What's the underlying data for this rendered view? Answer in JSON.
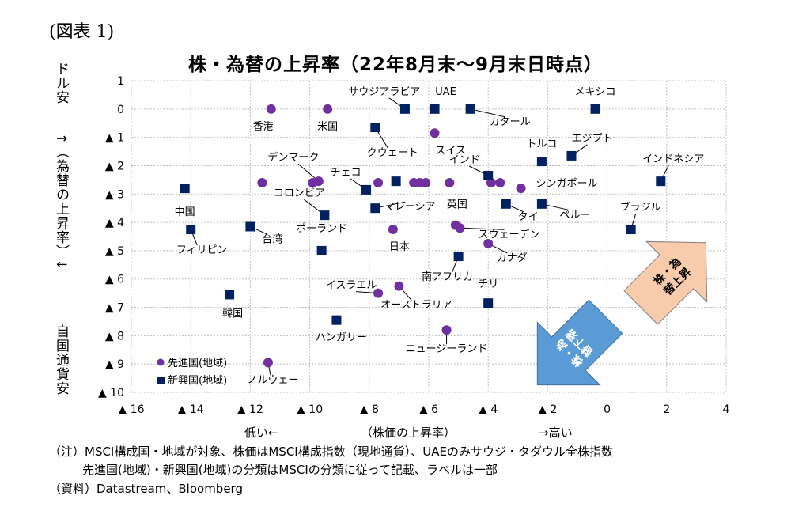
{
  "figure_number": "(図表 1)",
  "chart_data": {
    "type": "scatter",
    "title": "株・為替の上昇率（22年8月末～9月末日時点）",
    "xlabel": "（株価の上昇率）",
    "xlabel_left": "低い←",
    "xlabel_right": "→高い",
    "ylabel_top": "ドル安",
    "ylabel_middle": "↑（為替の上昇率）↓",
    "ylabel_bottom": "自国通貨安",
    "xlim": [
      -16,
      4
    ],
    "ylim": [
      -10,
      1
    ],
    "x_ticks": [
      {
        "value": -16,
        "label": "▲ 16"
      },
      {
        "value": -14,
        "label": "▲ 14"
      },
      {
        "value": -12,
        "label": "▲ 12"
      },
      {
        "value": -10,
        "label": "▲ 10"
      },
      {
        "value": -8,
        "label": "▲ 8"
      },
      {
        "value": -6,
        "label": "▲ 6"
      },
      {
        "value": -4,
        "label": "▲ 4"
      },
      {
        "value": -2,
        "label": "▲ 2"
      },
      {
        "value": 0,
        "label": "0"
      },
      {
        "value": 2,
        "label": "2"
      },
      {
        "value": 4,
        "label": "4"
      }
    ],
    "y_ticks": [
      {
        "value": 1,
        "label": "1"
      },
      {
        "value": 0,
        "label": "0"
      },
      {
        "value": -1,
        "label": "▲ 1"
      },
      {
        "value": -2,
        "label": "▲ 2"
      },
      {
        "value": -3,
        "label": "▲ 3"
      },
      {
        "value": -4,
        "label": "▲ 4"
      },
      {
        "value": -5,
        "label": "▲ 5"
      },
      {
        "value": -6,
        "label": "▲ 6"
      },
      {
        "value": -7,
        "label": "▲ 7"
      },
      {
        "value": -8,
        "label": "▲ 8"
      },
      {
        "value": -9,
        "label": "▲ 9"
      },
      {
        "value": -10,
        "label": "▲ 10"
      }
    ],
    "grid": true,
    "legend_position": "bottom-left",
    "series": [
      {
        "name": "先進国(地域)",
        "marker": "circle",
        "color": "#7030A0",
        "points": [
          {
            "x": -11.3,
            "y": 0.0,
            "label": "香港"
          },
          {
            "x": -9.4,
            "y": 0.0,
            "label": "米国"
          },
          {
            "x": -11.6,
            "y": -2.6
          },
          {
            "x": -9.9,
            "y": -2.6
          },
          {
            "x": -9.7,
            "y": -2.55,
            "label": "デンマーク"
          },
          {
            "x": -7.7,
            "y": -2.6
          },
          {
            "x": -6.5,
            "y": -2.6
          },
          {
            "x": -6.3,
            "y": -2.6
          },
          {
            "x": -6.1,
            "y": -2.6
          },
          {
            "x": -5.3,
            "y": -2.6
          },
          {
            "x": -5.8,
            "y": -0.85,
            "label": "スイス"
          },
          {
            "x": -3.9,
            "y": -2.6
          },
          {
            "x": -3.6,
            "y": -2.6
          },
          {
            "x": -2.9,
            "y": -2.8,
            "label": "シンガポール"
          },
          {
            "x": -7.2,
            "y": -4.25,
            "label": "日本"
          },
          {
            "x": -5.1,
            "y": -4.1,
            "label": "英国"
          },
          {
            "x": -4.95,
            "y": -4.2,
            "label": "スウェーデン"
          },
          {
            "x": -4.0,
            "y": -4.75,
            "label": "カナダ"
          },
          {
            "x": -7.0,
            "y": -6.25,
            "label": "オーストラリア"
          },
          {
            "x": -7.7,
            "y": -6.5,
            "label": "イスラエル"
          },
          {
            "x": -5.4,
            "y": -7.8,
            "label": "ニュージーランド"
          },
          {
            "x": -11.4,
            "y": -8.95,
            "label": "ノルウェー"
          }
        ]
      },
      {
        "name": "新興国(地域)",
        "marker": "square",
        "color": "#002060",
        "points": [
          {
            "x": -6.8,
            "y": 0.0,
            "label": "サウジアラビア"
          },
          {
            "x": -5.8,
            "y": 0.0,
            "label": "UAE"
          },
          {
            "x": -4.6,
            "y": 0.0,
            "label": "カタール"
          },
          {
            "x": -0.4,
            "y": 0.0,
            "label": "メキシコ"
          },
          {
            "x": -7.8,
            "y": -0.65,
            "label": "クウェート"
          },
          {
            "x": -2.2,
            "y": -1.85,
            "label": "トルコ"
          },
          {
            "x": -1.2,
            "y": -1.65,
            "label": "エジプト"
          },
          {
            "x": 1.8,
            "y": -2.55,
            "label": "インドネシア"
          },
          {
            "x": -4.0,
            "y": -2.35,
            "label": "インド"
          },
          {
            "x": -8.1,
            "y": -2.85,
            "label": "チェコ"
          },
          {
            "x": -7.1,
            "y": -2.55
          },
          {
            "x": -14.2,
            "y": -2.8,
            "label": "中国"
          },
          {
            "x": -9.5,
            "y": -3.75,
            "label": "コロンビア"
          },
          {
            "x": -7.8,
            "y": -3.5,
            "label": "マレーシア"
          },
          {
            "x": -3.4,
            "y": -3.35,
            "label": "タイ"
          },
          {
            "x": -2.2,
            "y": -3.35,
            "label": "ペルー"
          },
          {
            "x": 0.8,
            "y": -4.25,
            "label": "ブラジル"
          },
          {
            "x": -14.0,
            "y": -4.25,
            "label": "フィリピン"
          },
          {
            "x": -12.0,
            "y": -4.15,
            "label": "台湾"
          },
          {
            "x": -9.6,
            "y": -5.0,
            "label": "ポーランド"
          },
          {
            "x": -5.0,
            "y": -5.2,
            "label": "南アフリカ"
          },
          {
            "x": -12.7,
            "y": -6.55,
            "label": "韓国"
          },
          {
            "x": -4.0,
            "y": -6.85,
            "label": "チリ"
          },
          {
            "x": -9.1,
            "y": -7.45,
            "label": "ハンガリー"
          }
        ]
      }
    ],
    "annotations": [
      {
        "text": "株・為替上昇",
        "color": "#F8CBAD"
      },
      {
        "text": "株・為替下落",
        "color": "#5B9BD5"
      }
    ]
  },
  "notes": [
    "（注）MSCI構成国・地域が対象、株価はMSCI構成指数（現地通貨）、UAEのみサウジ・タダウル全株指数",
    "先進国(地域)・新興国(地域)の分類はMSCIの分類に従って記載、ラベルは一部",
    "（資料）Datastream、Bloomberg"
  ]
}
